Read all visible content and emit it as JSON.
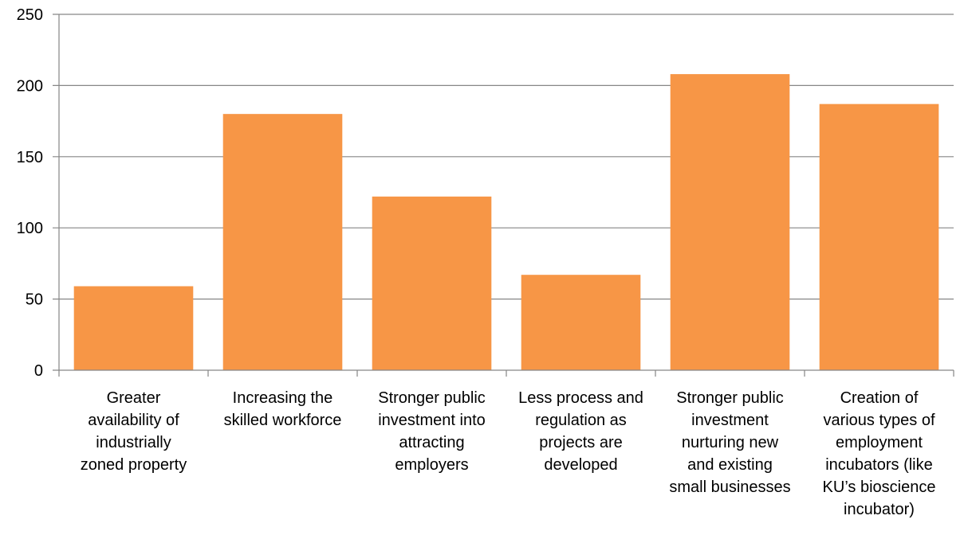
{
  "chart_data": {
    "type": "bar",
    "title": "",
    "xlabel": "",
    "ylabel": "",
    "ylim": [
      0,
      250
    ],
    "yticks": [
      0,
      50,
      100,
      150,
      200,
      250
    ],
    "grid": true,
    "legend": "none",
    "bar_color": "#F79646",
    "grid_color": "#868686",
    "categories": [
      [
        "Greater",
        "availability of",
        "industrially",
        "zoned property"
      ],
      [
        "Increasing the",
        "skilled workforce"
      ],
      [
        "Stronger public",
        "investment into",
        "attracting",
        "employers"
      ],
      [
        "Less process and",
        "regulation as",
        "projects are",
        "developed"
      ],
      [
        "Stronger public",
        "investment",
        "nurturing new",
        "and existing",
        "small businesses"
      ],
      [
        "Creation of",
        "various types of",
        "employment",
        "incubators (like",
        "KU’s bioscience",
        "incubator)"
      ]
    ],
    "values": [
      59,
      180,
      122,
      67,
      208,
      187
    ]
  }
}
